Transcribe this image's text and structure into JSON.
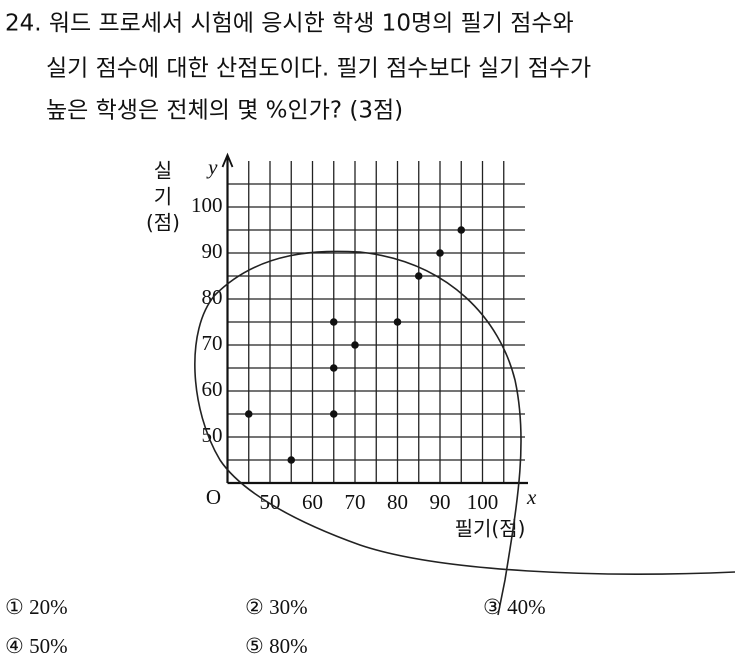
{
  "question": {
    "lines": [
      "24. 워드 프로세서 시험에 응시한 학생 10명의 필기 점수와",
      "실기 점수에 대한 산점도이다. 필기 점수보다 실기 점수가",
      "높은 학생은 전체의 몇 %인가? (3점)"
    ]
  },
  "chart_data": {
    "type": "scatter",
    "x_label": "필기(점)",
    "y_label_lines": [
      "실",
      "기",
      "(점)"
    ],
    "x_axis_letter": "x",
    "y_axis_letter": "y",
    "origin_label": "O",
    "x": [
      45,
      55,
      65,
      65,
      65,
      70,
      80,
      85,
      90,
      95
    ],
    "values": [
      55,
      45,
      75,
      65,
      55,
      70,
      75,
      85,
      90,
      95
    ],
    "color": "#111111",
    "xlim": [
      40,
      110
    ],
    "ylim": [
      40,
      110
    ],
    "xticks": [
      50,
      60,
      70,
      80,
      90,
      100
    ],
    "yticks": [
      50,
      60,
      70,
      80,
      90,
      100
    ],
    "minor_ticks": [
      45,
      55,
      65,
      75,
      85,
      95,
      105
    ],
    "grid": true
  },
  "choices": [
    "① 20%",
    "② 30%",
    "③ 40%",
    "④ 50%",
    "⑤ 80%"
  ]
}
